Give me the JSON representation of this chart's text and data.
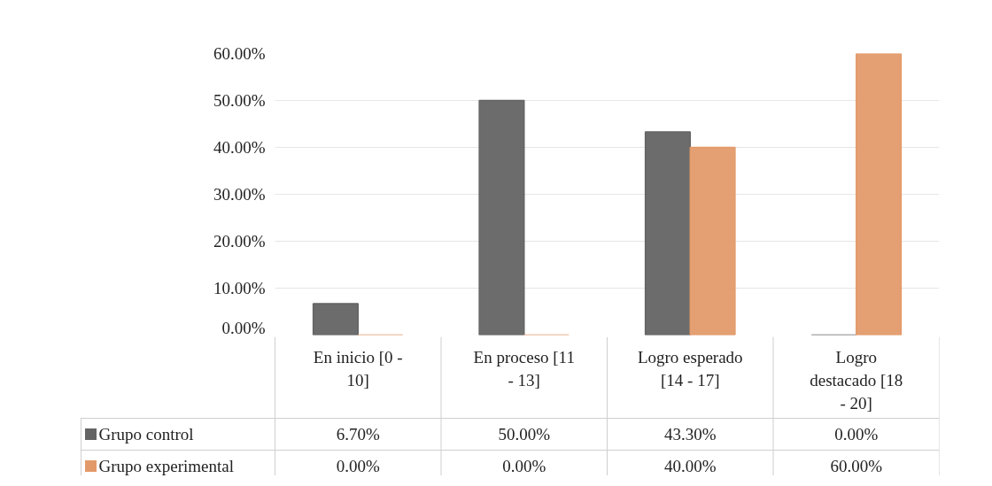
{
  "chart_data": {
    "type": "bar",
    "categories": [
      "En inicio [0 - 10]",
      "En proceso [11 - 13]",
      "Logro esperado [14 - 17]",
      "Logro destacado [18 - 20]"
    ],
    "series": [
      {
        "name": "Grupo control",
        "color": "#646464",
        "values": [
          6.7,
          50.0,
          43.3,
          0.0
        ],
        "value_labels": [
          "6.70%",
          "50.00%",
          "43.30%",
          "0.00%"
        ]
      },
      {
        "name": "Grupo experimental",
        "color": "#e39a6a",
        "values": [
          0.0,
          0.0,
          40.0,
          60.0
        ],
        "value_labels": [
          "0.00%",
          "0.00%",
          "40.00%",
          "60.00%"
        ]
      }
    ],
    "ylim": [
      0,
      60
    ],
    "yticks": [
      {
        "value": 0,
        "label": "0.00%"
      },
      {
        "value": 10,
        "label": "10.00%"
      },
      {
        "value": 20,
        "label": "20.00%"
      },
      {
        "value": 30,
        "label": "30.00%"
      },
      {
        "value": 40,
        "label": "40.00%"
      },
      {
        "value": 50,
        "label": "50.00%"
      },
      {
        "value": 60,
        "label": "60.00%"
      }
    ],
    "grid": "y",
    "legend": "bottom"
  }
}
